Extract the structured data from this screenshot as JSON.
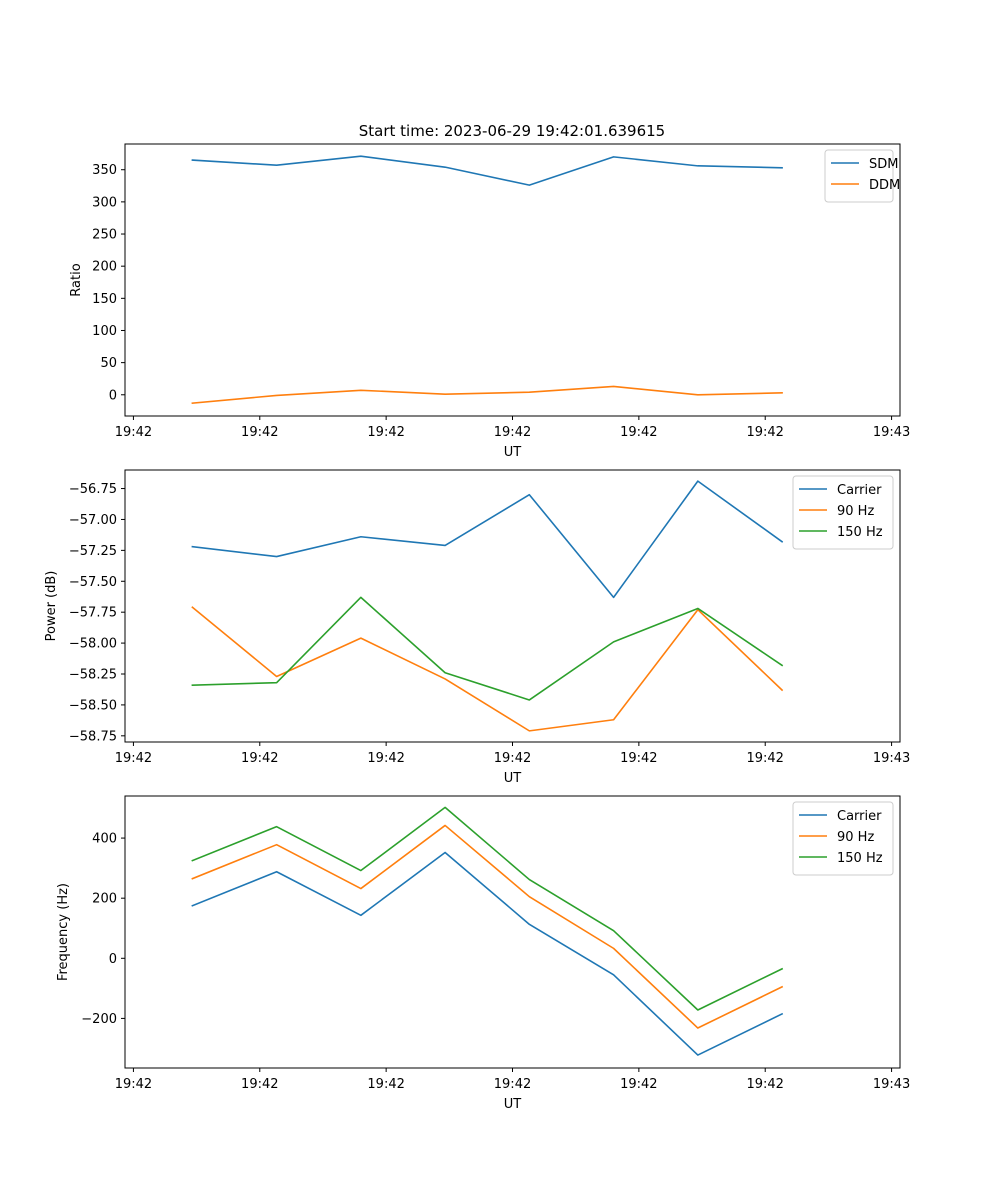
{
  "figure_title": "Start time: 2023-06-29 19:42:01.639615",
  "colors": {
    "c0": "#1f77b4",
    "c1": "#ff7f0e",
    "c2": "#2ca02c",
    "frame": "#000000",
    "legend_border": "#cccccc"
  },
  "chart_data": [
    {
      "type": "line",
      "title": "Start time: 2023-06-29 19:42:01.639615",
      "xlabel": "UT",
      "ylabel": "Ratio",
      "x": [
        1,
        2,
        3,
        4,
        5,
        6,
        7,
        8
      ],
      "xlim": [
        0.2,
        9.4
      ],
      "x_tick_positions": [
        0.3,
        1.8,
        3.3,
        4.8,
        6.3,
        7.8,
        9.3
      ],
      "x_tick_labels": [
        "19:42",
        "19:42",
        "19:42",
        "19:42",
        "19:42",
        "19:42",
        "19:43"
      ],
      "ylim": [
        -33,
        390
      ],
      "y_ticks": [
        0,
        50,
        100,
        150,
        200,
        250,
        300,
        350
      ],
      "grid": false,
      "legend_placement": "top-right",
      "series": [
        {
          "name": "SDM",
          "color": "#1f77b4",
          "values": [
            365,
            357,
            371,
            354,
            326,
            370,
            356,
            353
          ]
        },
        {
          "name": "DDM",
          "color": "#ff7f0e",
          "values": [
            -13,
            -1,
            7,
            1,
            4,
            13,
            0,
            3
          ]
        }
      ]
    },
    {
      "type": "line",
      "title": "",
      "xlabel": "UT",
      "ylabel": "Power (dB)",
      "x": [
        1,
        2,
        3,
        4,
        5,
        6,
        7,
        8
      ],
      "xlim": [
        0.2,
        9.4
      ],
      "x_tick_positions": [
        0.3,
        1.8,
        3.3,
        4.8,
        6.3,
        7.8,
        9.3
      ],
      "x_tick_labels": [
        "19:42",
        "19:42",
        "19:42",
        "19:42",
        "19:42",
        "19:42",
        "19:43"
      ],
      "ylim": [
        -58.8,
        -56.6
      ],
      "y_ticks": [
        -58.75,
        -58.5,
        -58.25,
        -58.0,
        -57.75,
        -57.5,
        -57.25,
        -57.0,
        -56.75
      ],
      "y_tick_labels": [
        "−58.75",
        "−58.50",
        "−58.25",
        "−58.00",
        "−57.75",
        "−57.50",
        "−57.25",
        "−57.00",
        "−56.75"
      ],
      "grid": false,
      "legend_placement": "top-right",
      "series": [
        {
          "name": "Carrier",
          "color": "#1f77b4",
          "values": [
            -57.22,
            -57.3,
            -57.14,
            -57.21,
            -56.8,
            -57.63,
            -56.69,
            -57.18
          ]
        },
        {
          "name": "90 Hz",
          "color": "#ff7f0e",
          "values": [
            -57.71,
            -58.27,
            -57.96,
            -58.29,
            -58.71,
            -58.62,
            -57.73,
            -58.38
          ]
        },
        {
          "name": "150 Hz",
          "color": "#2ca02c",
          "values": [
            -58.34,
            -58.32,
            -57.63,
            -58.24,
            -58.46,
            -57.99,
            -57.72,
            -58.18
          ]
        }
      ]
    },
    {
      "type": "line",
      "title": "",
      "xlabel": "UT",
      "ylabel": "Frequency (Hz)",
      "x": [
        1,
        2,
        3,
        4,
        5,
        6,
        7,
        8
      ],
      "xlim": [
        0.2,
        9.4
      ],
      "x_tick_positions": [
        0.3,
        1.8,
        3.3,
        4.8,
        6.3,
        7.8,
        9.3
      ],
      "x_tick_labels": [
        "19:42",
        "19:42",
        "19:42",
        "19:42",
        "19:42",
        "19:42",
        "19:43"
      ],
      "ylim": [
        -365,
        540
      ],
      "y_ticks": [
        -200,
        0,
        200,
        400
      ],
      "y_tick_labels": [
        "−200",
        "0",
        "200",
        "400"
      ],
      "grid": false,
      "legend_placement": "top-right",
      "series": [
        {
          "name": "Carrier",
          "color": "#1f77b4",
          "values": [
            175,
            288,
            143,
            352,
            113,
            -55,
            -322,
            -185
          ]
        },
        {
          "name": "90 Hz",
          "color": "#ff7f0e",
          "values": [
            265,
            378,
            232,
            442,
            205,
            33,
            -232,
            -95
          ]
        },
        {
          "name": "150 Hz",
          "color": "#2ca02c",
          "values": [
            325,
            438,
            292,
            502,
            262,
            92,
            -172,
            -35
          ]
        }
      ]
    }
  ]
}
